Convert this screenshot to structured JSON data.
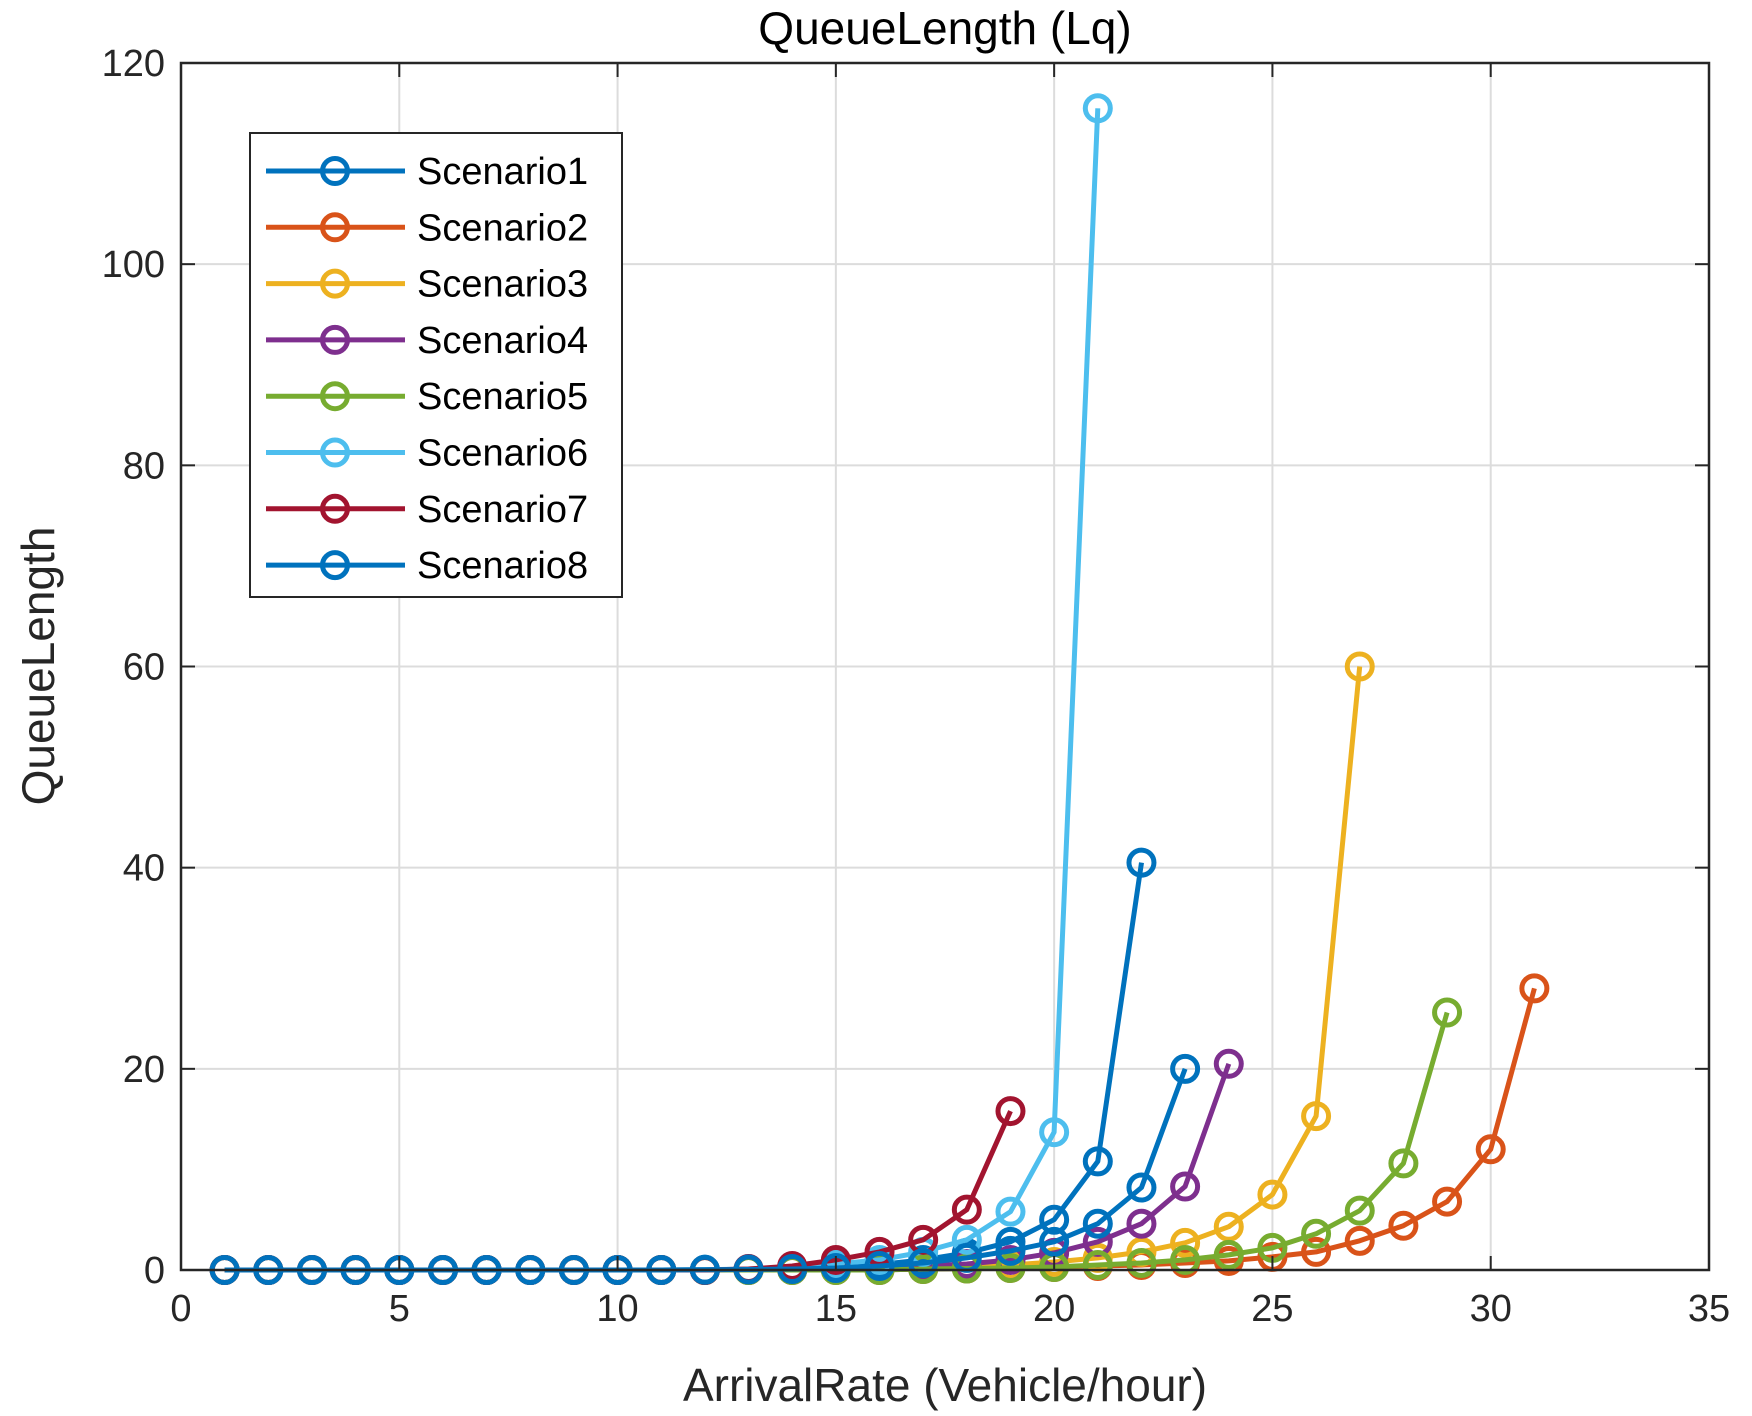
{
  "chart_data": {
    "type": "line",
    "title": "QueueLength (Lq)",
    "xlabel": "ArrivalRate (Vehicle/hour)",
    "ylabel": "QueueLength",
    "xlim": [
      0,
      35
    ],
    "ylim": [
      0,
      120
    ],
    "xticks": [
      0,
      5,
      10,
      15,
      20,
      25,
      30,
      35
    ],
    "yticks": [
      0,
      20,
      40,
      60,
      80,
      100,
      120
    ],
    "grid": true,
    "legend_position": "top-left",
    "series": [
      {
        "name": "Scenario1",
        "color": "#0072bd",
        "x": [
          1,
          2,
          3,
          4,
          5,
          6,
          7,
          8,
          9,
          10,
          11,
          12,
          13,
          14,
          15,
          16,
          17,
          18,
          19,
          20,
          21,
          22
        ],
        "y": [
          0,
          0,
          0,
          0,
          0,
          0,
          0,
          0,
          0,
          0,
          0,
          0.02,
          0.05,
          0.15,
          0.3,
          0.55,
          1.0,
          1.7,
          2.8,
          5.0,
          10.8,
          40.5
        ]
      },
      {
        "name": "Scenario2",
        "color": "#d95319",
        "x": [
          1,
          2,
          3,
          4,
          5,
          6,
          7,
          8,
          9,
          10,
          11,
          12,
          13,
          14,
          15,
          16,
          17,
          18,
          19,
          20,
          21,
          22,
          23,
          24,
          25,
          26,
          27,
          28,
          29,
          30,
          31
        ],
        "y": [
          0,
          0,
          0,
          0,
          0,
          0,
          0,
          0,
          0,
          0,
          0,
          0,
          0,
          0,
          0,
          0,
          0.1,
          0.15,
          0.2,
          0.3,
          0.4,
          0.5,
          0.7,
          0.9,
          1.3,
          1.8,
          2.9,
          4.4,
          6.8,
          12.0,
          28.0
        ]
      },
      {
        "name": "Scenario3",
        "color": "#edb120",
        "x": [
          1,
          2,
          3,
          4,
          5,
          6,
          7,
          8,
          9,
          10,
          11,
          12,
          13,
          14,
          15,
          16,
          17,
          18,
          19,
          20,
          21,
          22,
          23,
          24,
          25,
          26,
          27
        ],
        "y": [
          0,
          0,
          0,
          0,
          0,
          0,
          0,
          0,
          0,
          0,
          0,
          0,
          0,
          0.05,
          0.1,
          0.15,
          0.2,
          0.35,
          0.5,
          0.8,
          1.2,
          1.8,
          2.7,
          4.3,
          7.5,
          15.3,
          60.0
        ]
      },
      {
        "name": "Scenario4",
        "color": "#7e2f8e",
        "x": [
          1,
          2,
          3,
          4,
          5,
          6,
          7,
          8,
          9,
          10,
          11,
          12,
          13,
          14,
          15,
          16,
          17,
          18,
          19,
          20,
          21,
          22,
          23,
          24
        ],
        "y": [
          0,
          0,
          0,
          0,
          0,
          0,
          0,
          0,
          0,
          0,
          0,
          0,
          0.02,
          0.05,
          0.1,
          0.2,
          0.4,
          0.6,
          1.0,
          1.7,
          2.8,
          4.6,
          8.3,
          20.5
        ]
      },
      {
        "name": "Scenario5",
        "color": "#77ac30",
        "x": [
          1,
          2,
          3,
          4,
          5,
          6,
          7,
          8,
          9,
          10,
          11,
          12,
          13,
          14,
          15,
          16,
          17,
          18,
          19,
          20,
          21,
          22,
          23,
          24,
          25,
          26,
          27,
          28,
          29
        ],
        "y": [
          0,
          0,
          0,
          0,
          0,
          0,
          0,
          0,
          0,
          0,
          0,
          0,
          0,
          0,
          0,
          0,
          0.1,
          0.15,
          0.2,
          0.3,
          0.5,
          0.7,
          1.0,
          1.5,
          2.2,
          3.6,
          5.9,
          10.6,
          25.6
        ]
      },
      {
        "name": "Scenario6",
        "color": "#4dbeee",
        "x": [
          1,
          2,
          3,
          4,
          5,
          6,
          7,
          8,
          9,
          10,
          11,
          12,
          13,
          14,
          15,
          16,
          17,
          18,
          19,
          20,
          21
        ],
        "y": [
          0,
          0,
          0,
          0,
          0,
          0,
          0,
          0,
          0,
          0,
          0,
          0.02,
          0.1,
          0.3,
          0.6,
          1.0,
          1.8,
          3.0,
          5.8,
          13.7,
          115.5
        ]
      },
      {
        "name": "Scenario7",
        "color": "#a2142f",
        "x": [
          1,
          2,
          3,
          4,
          5,
          6,
          7,
          8,
          9,
          10,
          11,
          12,
          13,
          14,
          15,
          16,
          17,
          18,
          19
        ],
        "y": [
          0,
          0,
          0,
          0,
          0,
          0,
          0,
          0,
          0,
          0,
          0,
          0,
          0.1,
          0.4,
          1.0,
          1.8,
          3.0,
          6.0,
          15.8
        ]
      },
      {
        "name": "Scenario8",
        "color": "#0072bd",
        "x": [
          1,
          2,
          3,
          4,
          5,
          6,
          7,
          8,
          9,
          10,
          11,
          12,
          13,
          14,
          15,
          16,
          17,
          18,
          19,
          20,
          21,
          22,
          23
        ],
        "y": [
          0,
          0,
          0,
          0,
          0,
          0,
          0,
          0,
          0,
          0,
          0,
          0.02,
          0.05,
          0.1,
          0.2,
          0.4,
          0.7,
          1.2,
          1.9,
          2.8,
          4.6,
          8.2,
          20.0
        ]
      }
    ]
  }
}
